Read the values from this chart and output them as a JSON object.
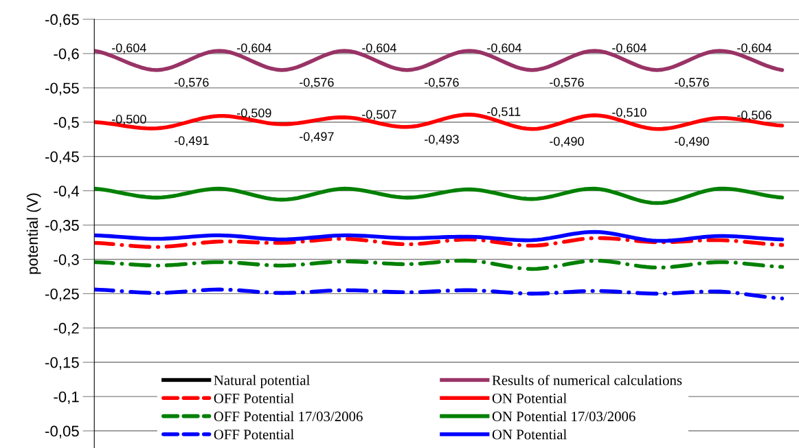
{
  "chart_data": {
    "type": "line",
    "ylabel": "potential (V)",
    "categories": [
      null,
      null,
      null,
      null,
      null,
      null,
      null,
      null,
      null,
      null,
      null,
      null
    ],
    "ylim": [
      -0.025,
      -0.65
    ],
    "yticks": [
      {
        "value": -0.65,
        "label": "-0,65"
      },
      {
        "value": -0.6,
        "label": "-0,6"
      },
      {
        "value": -0.55,
        "label": "-0,55"
      },
      {
        "value": -0.5,
        "label": "-0,5"
      },
      {
        "value": -0.45,
        "label": "-0,45"
      },
      {
        "value": -0.4,
        "label": "-0,4"
      },
      {
        "value": -0.35,
        "label": "-0,35"
      },
      {
        "value": -0.3,
        "label": "-0,3"
      },
      {
        "value": -0.25,
        "label": "-0,25"
      },
      {
        "value": -0.2,
        "label": "-0,2"
      },
      {
        "value": -0.15,
        "label": "-0,15"
      },
      {
        "value": -0.1,
        "label": "-0,1"
      },
      {
        "value": -0.05,
        "label": "-0,05"
      }
    ],
    "grid": "y",
    "legend": "bottom",
    "series": [
      {
        "name": "Natural potential",
        "color": "#000000",
        "line_style": "solid",
        "values": [
          null,
          null,
          null,
          null,
          null,
          null,
          null,
          null,
          null,
          null,
          null,
          null
        ]
      },
      {
        "name": "OFF Potential",
        "color": "#ff0000",
        "line_style": "dashdot",
        "values": [
          -0.324,
          -0.318,
          -0.326,
          -0.324,
          -0.33,
          -0.322,
          -0.329,
          -0.32,
          -0.331,
          -0.325,
          -0.328,
          -0.321
        ]
      },
      {
        "name": "OFF Potential 17/03/2006",
        "color": "#008000",
        "line_style": "dashdot",
        "values": [
          -0.296,
          -0.291,
          -0.296,
          -0.291,
          -0.297,
          -0.293,
          -0.298,
          -0.286,
          -0.298,
          -0.288,
          -0.296,
          -0.289
        ]
      },
      {
        "name": "OFF Potential",
        "color": "#0000ff",
        "line_style": "dashdot",
        "values": [
          -0.256,
          -0.251,
          -0.256,
          -0.251,
          -0.255,
          -0.252,
          -0.255,
          -0.25,
          -0.254,
          -0.25,
          -0.253,
          -0.243
        ]
      },
      {
        "name": "Results of numerical calculations",
        "color": "#993366",
        "line_style": "solid",
        "values": [
          -0.604,
          -0.576,
          -0.604,
          -0.576,
          -0.604,
          -0.576,
          -0.604,
          -0.576,
          -0.604,
          -0.576,
          -0.604,
          -0.576
        ],
        "value_labels": [
          "-0,604",
          "-0,576",
          "-0,604",
          "-0,576",
          "-0,604",
          "-0,576",
          "-0,604",
          "-0,576",
          "-0,604",
          "-0,576",
          "-0,604",
          null
        ]
      },
      {
        "name": "ON Potential",
        "color": "#ff0000",
        "line_style": "solid",
        "values": [
          -0.5,
          -0.491,
          -0.509,
          -0.497,
          -0.507,
          -0.493,
          -0.511,
          -0.49,
          -0.51,
          -0.49,
          -0.506,
          -0.495
        ],
        "value_labels": [
          "-0,500",
          "-0,491",
          "-0,509",
          "-0,497",
          "-0,507",
          "-0,493",
          "-0,511",
          "-0,490",
          "-0,510",
          "-0,490",
          "-0,506",
          null
        ]
      },
      {
        "name": "ON Potential 17/03/2006",
        "color": "#008000",
        "line_style": "solid",
        "values": [
          -0.403,
          -0.39,
          -0.403,
          -0.387,
          -0.403,
          -0.39,
          -0.402,
          -0.388,
          -0.403,
          -0.382,
          -0.403,
          -0.39
        ]
      },
      {
        "name": "ON Potential",
        "color": "#0000ff",
        "line_style": "solid",
        "values": [
          -0.335,
          -0.33,
          -0.335,
          -0.329,
          -0.335,
          -0.331,
          -0.333,
          -0.328,
          -0.34,
          -0.327,
          -0.334,
          -0.329
        ]
      }
    ]
  }
}
